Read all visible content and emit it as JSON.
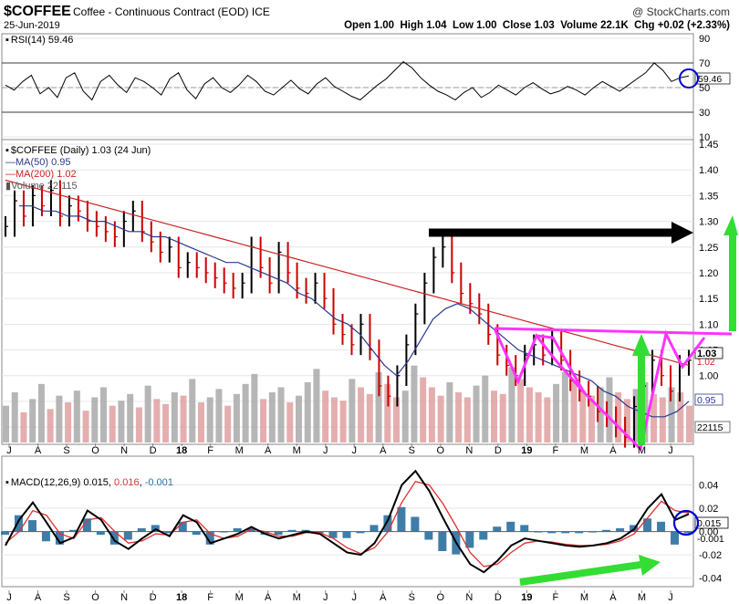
{
  "header": {
    "symbol": "$COFFEE",
    "description": "Coffee - Continuous Contract (EOD) ICE",
    "date": "25-Jun-2019",
    "watermark": "@ StockCharts.com",
    "ohlc": "Open 1.00  High 1.04  Low 1.00  Close 1.03  Volume 22.1K  Chg +0.02 (+2.33%)"
  },
  "colors": {
    "price_up": "#000000",
    "price_down": "#cc0000",
    "ma50": "#2b3a8c",
    "ma200": "#cc2222",
    "volume_up": "#a9a9a9",
    "volume_down": "#e0a0a0",
    "macd_line": "#000000",
    "signal_line": "#e03030",
    "histogram": "#2a6fa0",
    "annotation_magenta": "#ff33ff",
    "annotation_green": "#33dd33",
    "annotation_black": "#000000",
    "annotation_blue": "#0000cc"
  },
  "chart_data": [
    {
      "type": "line",
      "panel": "RSI",
      "title": "RSI(14) 59.46",
      "y_ticks": [
        "90",
        "70",
        "50",
        "30",
        "10"
      ],
      "ylim": [
        10,
        90
      ],
      "reference_lines": [
        70,
        50,
        30
      ],
      "last_value_label": "59.46",
      "series": [
        {
          "name": "RSI(14)",
          "values": [
            52,
            48,
            55,
            60,
            45,
            50,
            42,
            58,
            62,
            47,
            40,
            55,
            60,
            52,
            46,
            58,
            55,
            50,
            44,
            57,
            62,
            48,
            41,
            53,
            58,
            50,
            46,
            52,
            60,
            55,
            47,
            44,
            50,
            56,
            49,
            45,
            53,
            58,
            51,
            47,
            43,
            40,
            46,
            52,
            57,
            64,
            71,
            66,
            58,
            52,
            47,
            44,
            40,
            46,
            50,
            42,
            46,
            52,
            48,
            44,
            50,
            54,
            49,
            45,
            47,
            51,
            48,
            44,
            50,
            55,
            51,
            47,
            52,
            57,
            62,
            70,
            64,
            55,
            58,
            59.46
          ]
        }
      ]
    },
    {
      "type": "line",
      "panel": "Price",
      "title": "$COFFEE (Daily) 1.03 (24 Jun)",
      "legend": [
        "MA(50) 0.95",
        "MA(200) 1.02",
        "Volume 22,115"
      ],
      "y_ticks": [
        "1.45",
        "1.40",
        "1.35",
        "1.30",
        "1.25",
        "1.20",
        "1.15",
        "1.10",
        "1.05",
        "1.00",
        "0.95",
        "0.90"
      ],
      "ylim": [
        0.87,
        1.45
      ],
      "x_ticks": [
        "J",
        "A",
        "S",
        "O",
        "N",
        "D",
        "18",
        "F",
        "M",
        "A",
        "M",
        "J",
        "J",
        "A",
        "S",
        "O",
        "N",
        "D",
        "19",
        "F",
        "M",
        "A",
        "M",
        "J"
      ],
      "last_value_labels": {
        "close": "1.03",
        "ma200": "1.02",
        "ma50": "0.95",
        "volume": "22115"
      },
      "series": [
        {
          "name": "$COFFEE",
          "values": [
            1.29,
            1.34,
            1.31,
            1.35,
            1.33,
            1.36,
            1.31,
            1.33,
            1.32,
            1.3,
            1.29,
            1.28,
            1.27,
            1.3,
            1.32,
            1.28,
            1.26,
            1.24,
            1.25,
            1.21,
            1.22,
            1.21,
            1.2,
            1.19,
            1.18,
            1.17,
            1.18,
            1.25,
            1.21,
            1.18,
            1.24,
            1.2,
            1.17,
            1.16,
            1.18,
            1.15,
            1.1,
            1.08,
            1.06,
            1.1,
            1.05,
            0.98,
            0.96,
            1.0,
            1.06,
            1.12,
            1.18,
            1.23,
            1.25,
            1.2,
            1.16,
            1.14,
            1.12,
            1.08,
            1.04,
            1.02,
            1.0,
            1.04,
            1.06,
            1.04,
            1.07,
            1.03,
            0.99,
            0.97,
            0.96,
            0.93,
            0.92,
            0.9,
            0.88,
            0.94,
            0.98,
            1.03,
            1.0,
            0.97,
            1.02,
            1.03
          ]
        },
        {
          "name": "MA(50)",
          "values": [
            1.33,
            1.33,
            1.32,
            1.32,
            1.31,
            1.31,
            1.3,
            1.3,
            1.29,
            1.28,
            1.28,
            1.27,
            1.27,
            1.26,
            1.25,
            1.24,
            1.23,
            1.22,
            1.22,
            1.21,
            1.2,
            1.19,
            1.18,
            1.16,
            1.15,
            1.13,
            1.11,
            1.1,
            1.08,
            1.05,
            1.02,
            1.0,
            1.03,
            1.07,
            1.11,
            1.13,
            1.14,
            1.13,
            1.11,
            1.09,
            1.07,
            1.05,
            1.04,
            1.03,
            1.02,
            1.01,
            1.0,
            0.99,
            0.97,
            0.96,
            0.94,
            0.93,
            0.92,
            0.92,
            0.93,
            0.95
          ]
        },
        {
          "name": "MA(200)",
          "values": [
            1.38,
            1.37,
            1.36,
            1.35,
            1.34,
            1.33,
            1.32,
            1.31,
            1.3,
            1.29,
            1.28,
            1.27,
            1.26,
            1.25,
            1.24,
            1.23,
            1.22,
            1.21,
            1.2,
            1.19,
            1.18,
            1.17,
            1.16,
            1.15,
            1.14,
            1.13,
            1.12,
            1.11,
            1.1,
            1.09,
            1.08,
            1.07,
            1.06,
            1.05,
            1.04,
            1.03,
            1.02
          ]
        },
        {
          "name": "Volume",
          "values": [
            22,
            30,
            18,
            26,
            35,
            20,
            28,
            24,
            31,
            19,
            27,
            33,
            22,
            25,
            29,
            21,
            34,
            26,
            23,
            30,
            28,
            38,
            24,
            27,
            32,
            22,
            29,
            35,
            41,
            26,
            30,
            33,
            24,
            28,
            36,
            44,
            31,
            27,
            25,
            38,
            33,
            29,
            42,
            35,
            27,
            31,
            46,
            39,
            33,
            28,
            36,
            30,
            27,
            34,
            40,
            31,
            29,
            45,
            38,
            33,
            30,
            27,
            35,
            42,
            37,
            31,
            28,
            33,
            39,
            30,
            26,
            32,
            36,
            29,
            27,
            33,
            30,
            22
          ]
        }
      ]
    },
    {
      "type": "line",
      "panel": "MACD",
      "title": "MACD(12,26,9) 0.015, 0.016, -0.001",
      "y_ticks": [
        "0.04",
        "0.02",
        "0.00",
        "-0.02",
        "-0.04"
      ],
      "ylim": [
        -0.045,
        0.06
      ],
      "last_value_labels": {
        "macd": "0.015",
        "signal": "0.016",
        "histogram": "-0.001"
      },
      "x_ticks": [
        "J",
        "A",
        "S",
        "O",
        "N",
        "D",
        "18",
        "F",
        "M",
        "A",
        "M",
        "J",
        "J",
        "A",
        "S",
        "O",
        "N",
        "D",
        "19",
        "F",
        "M",
        "A",
        "M",
        "J"
      ],
      "series": [
        {
          "name": "MACD",
          "values": [
            -0.012,
            0.01,
            0.025,
            0.008,
            -0.01,
            -0.005,
            0.018,
            0.01,
            -0.008,
            -0.015,
            -0.006,
            0.002,
            -0.004,
            0.014,
            0.008,
            -0.01,
            -0.006,
            -0.002,
            0.004,
            -0.002,
            -0.006,
            -0.003,
            0.0,
            -0.002,
            -0.01,
            -0.018,
            -0.02,
            -0.01,
            0.01,
            0.04,
            0.052,
            0.035,
            0.012,
            -0.01,
            -0.028,
            -0.035,
            -0.025,
            -0.012,
            -0.006,
            -0.008,
            -0.01,
            -0.012,
            -0.013,
            -0.012,
            -0.01,
            -0.006,
            0.002,
            0.02,
            0.032,
            0.01,
            0.015
          ]
        },
        {
          "name": "Signal",
          "values": [
            -0.01,
            0.0,
            0.018,
            0.014,
            -0.002,
            -0.006,
            0.01,
            0.012,
            0.0,
            -0.01,
            -0.008,
            -0.002,
            -0.003,
            0.008,
            0.01,
            -0.002,
            -0.006,
            -0.004,
            0.002,
            0.0,
            -0.004,
            -0.004,
            -0.001,
            -0.001,
            -0.006,
            -0.014,
            -0.019,
            -0.014,
            0.0,
            0.025,
            0.043,
            0.04,
            0.024,
            0.004,
            -0.018,
            -0.03,
            -0.028,
            -0.018,
            -0.01,
            -0.008,
            -0.009,
            -0.011,
            -0.012,
            -0.012,
            -0.011,
            -0.008,
            -0.002,
            0.012,
            0.026,
            0.018,
            0.016
          ]
        }
      ]
    }
  ],
  "annotations": [
    "black resistance arrow at 1.25",
    "green up arrow right side",
    "magenta inverse head and shoulders",
    "green up arrow May",
    "green rising arrow MACD",
    "blue circles"
  ]
}
